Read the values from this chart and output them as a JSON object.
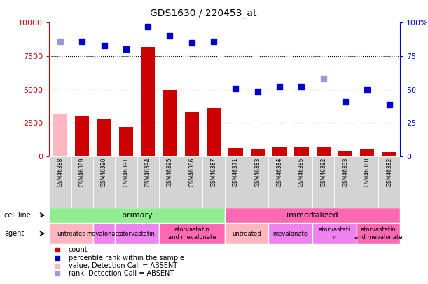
{
  "title": "GDS1630 / 220453_at",
  "samples": [
    "GSM46388",
    "GSM46389",
    "GSM46390",
    "GSM46391",
    "GSM46394",
    "GSM46395",
    "GSM46386",
    "GSM46387",
    "GSM46371",
    "GSM46383",
    "GSM46384",
    "GSM46385",
    "GSM46392",
    "GSM46393",
    "GSM46380",
    "GSM46382"
  ],
  "count_values": [
    3200,
    3000,
    2800,
    2200,
    8200,
    5000,
    3300,
    3600,
    600,
    500,
    650,
    700,
    700,
    400,
    500,
    300
  ],
  "count_absent": [
    true,
    false,
    false,
    false,
    false,
    false,
    false,
    false,
    false,
    false,
    false,
    false,
    false,
    false,
    false,
    false
  ],
  "percentile_values": [
    86,
    86,
    83,
    80,
    97,
    90,
    85,
    86,
    51,
    48,
    52,
    52,
    58,
    41,
    50,
    39
  ],
  "percentile_absent": [
    true,
    false,
    false,
    false,
    false,
    false,
    false,
    false,
    false,
    false,
    false,
    false,
    true,
    false,
    false,
    false
  ],
  "cell_line_groups": [
    {
      "label": "primary",
      "start": 0,
      "end": 8,
      "color": "#90EE90"
    },
    {
      "label": "immortalized",
      "start": 8,
      "end": 16,
      "color": "#FF69B4"
    }
  ],
  "agent_groups": [
    {
      "label": "untreated",
      "start": 0,
      "end": 2,
      "color": "#FFB6C1"
    },
    {
      "label": "mevalonate",
      "start": 2,
      "end": 3,
      "color": "#EE82EE"
    },
    {
      "label": "atorvastatin",
      "start": 3,
      "end": 5,
      "color": "#EE82EE"
    },
    {
      "label": "atorvastatin\nand mevalonate",
      "start": 5,
      "end": 8,
      "color": "#FF69B4"
    },
    {
      "label": "untreated",
      "start": 8,
      "end": 10,
      "color": "#FFB6C1"
    },
    {
      "label": "mevalonate",
      "start": 10,
      "end": 12,
      "color": "#EE82EE"
    },
    {
      "label": "atorvastati\nn",
      "start": 12,
      "end": 14,
      "color": "#EE82EE"
    },
    {
      "label": "atorvastatin\nand mevalonate",
      "start": 14,
      "end": 16,
      "color": "#FF69B4"
    }
  ],
  "ylim_left": [
    0,
    10000
  ],
  "ylim_right": [
    0,
    100
  ],
  "yticks_left": [
    0,
    2500,
    5000,
    7500,
    10000
  ],
  "yticks_right": [
    0,
    25,
    50,
    75,
    100
  ],
  "bar_color": "#CC0000",
  "bar_absent_color": "#FFB6C1",
  "dot_color": "#0000CC",
  "dot_absent_color": "#9999DD",
  "left_axis_color": "#CC0000",
  "right_axis_color": "#0000CC",
  "xticklabel_bg": "#D3D3D3",
  "cell_line_primary_color": "#90EE90",
  "cell_line_immortalized_color": "#FF69B4",
  "agent_untreated_color": "#FFB6C1",
  "agent_mevalonate_color": "#EE82EE",
  "agent_atorvastatin_color": "#EE82EE",
  "agent_combo_color": "#FF69B4"
}
